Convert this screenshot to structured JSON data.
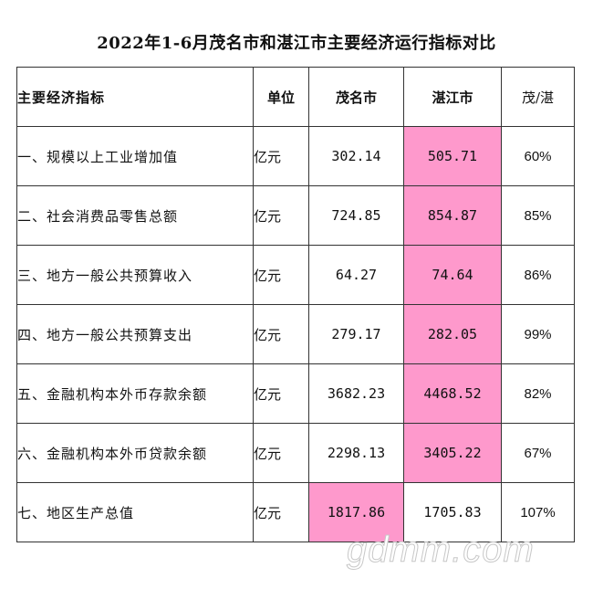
{
  "title": "2022年1-6月茂名市和湛江市主要经济运行指标对比",
  "table": {
    "headers": {
      "indicator": "主要经济指标",
      "unit": "单位",
      "maoming": "茂名市",
      "zhanjiang": "湛江市",
      "ratio": "茂/湛"
    },
    "rows": [
      {
        "name": "一、规模以上工业增加值",
        "unit": "亿元",
        "maoming": "302.14",
        "zhanjiang": "505.71",
        "ratio": "60%",
        "higher": "zhanjiang"
      },
      {
        "name": "二、社会消费品零售总额",
        "unit": "亿元",
        "maoming": "724.85",
        "zhanjiang": "854.87",
        "ratio": "85%",
        "higher": "zhanjiang"
      },
      {
        "name": "三、地方一般公共预算收入",
        "unit": "亿元",
        "maoming": "64.27",
        "zhanjiang": "74.64",
        "ratio": "86%",
        "higher": "zhanjiang"
      },
      {
        "name": "四、地方一般公共预算支出",
        "unit": "亿元",
        "maoming": "279.17",
        "zhanjiang": "282.05",
        "ratio": "99%",
        "higher": "zhanjiang"
      },
      {
        "name": "五、金融机构本外币存款余额",
        "unit": "亿元",
        "maoming": "3682.23",
        "zhanjiang": "4468.52",
        "ratio": "82%",
        "higher": "zhanjiang"
      },
      {
        "name": "六、金融机构本外币贷款余额",
        "unit": "亿元",
        "maoming": "2298.13",
        "zhanjiang": "3405.22",
        "ratio": "67%",
        "higher": "zhanjiang"
      },
      {
        "name": "七、地区生产总值",
        "unit": "亿元",
        "maoming": "1817.86",
        "zhanjiang": "1705.83",
        "ratio": "107%",
        "higher": "maoming"
      }
    ]
  },
  "highlight_color": "#fe99cc",
  "watermark": "gdmm.com"
}
